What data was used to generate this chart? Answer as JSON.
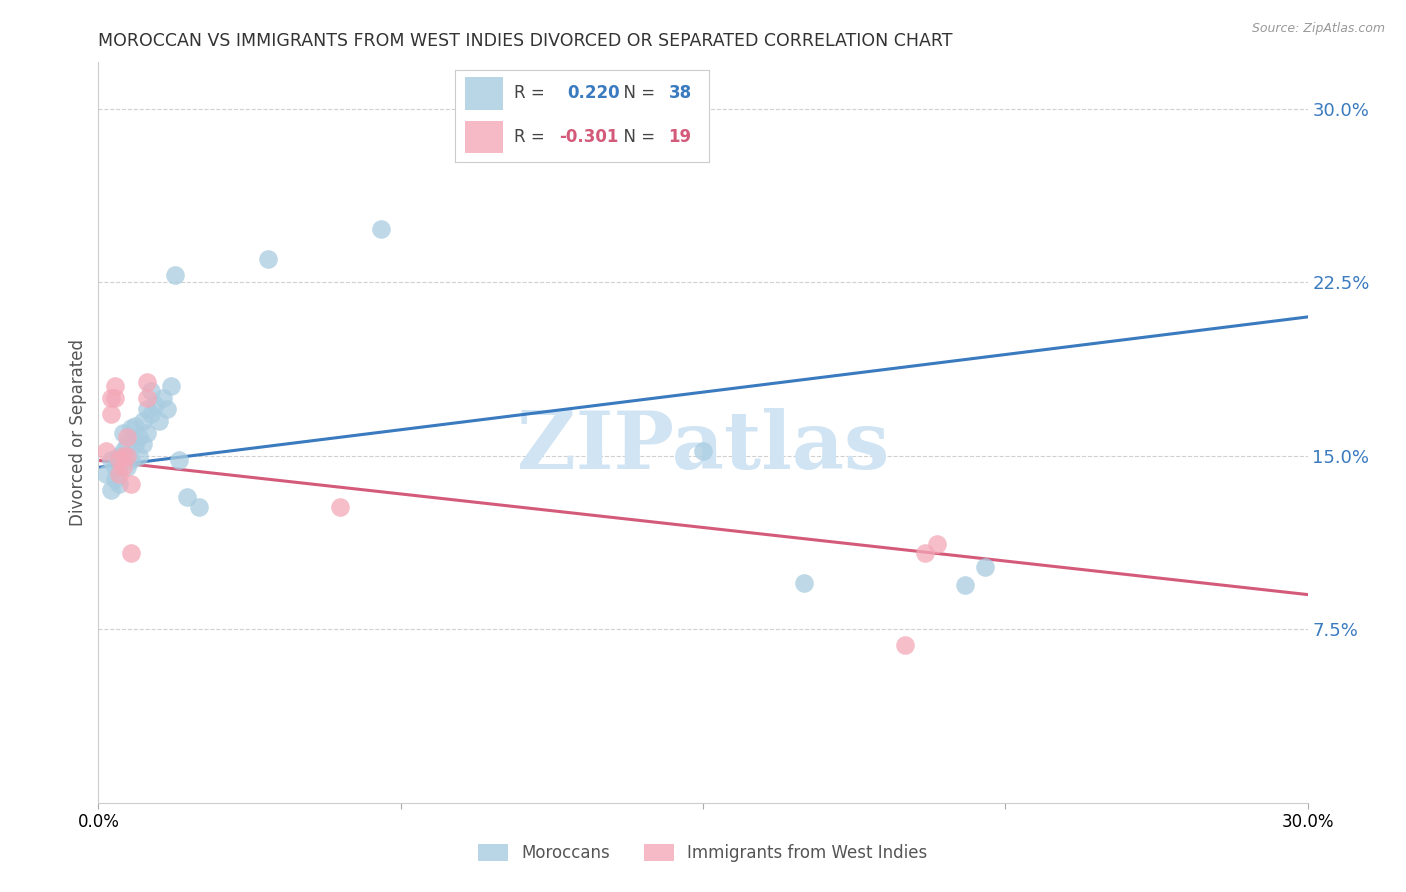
{
  "title": "MOROCCAN VS IMMIGRANTS FROM WEST INDIES DIVORCED OR SEPARATED CORRELATION CHART",
  "source": "Source: ZipAtlas.com",
  "ylabel": "Divorced or Separated",
  "legend_label_blue": "Moroccans",
  "legend_label_pink": "Immigrants from West Indies",
  "R_blue": "0.220",
  "N_blue": "38",
  "R_pink": "-0.301",
  "N_pink": "19",
  "xlim": [
    0.0,
    0.3
  ],
  "ylim": [
    0.0,
    0.32
  ],
  "yticks": [
    0.075,
    0.15,
    0.225,
    0.3
  ],
  "ytick_labels": [
    "7.5%",
    "15.0%",
    "22.5%",
    "30.0%"
  ],
  "blue_scatter_x": [
    0.002,
    0.003,
    0.003,
    0.004,
    0.004,
    0.005,
    0.005,
    0.006,
    0.006,
    0.007,
    0.007,
    0.008,
    0.008,
    0.009,
    0.009,
    0.01,
    0.01,
    0.011,
    0.011,
    0.012,
    0.012,
    0.013,
    0.013,
    0.014,
    0.015,
    0.016,
    0.017,
    0.018,
    0.019,
    0.02,
    0.022,
    0.025,
    0.042,
    0.07,
    0.15,
    0.175,
    0.215,
    0.22
  ],
  "blue_scatter_y": [
    0.142,
    0.148,
    0.135,
    0.145,
    0.14,
    0.15,
    0.138,
    0.16,
    0.152,
    0.155,
    0.145,
    0.162,
    0.148,
    0.155,
    0.163,
    0.158,
    0.15,
    0.165,
    0.155,
    0.16,
    0.17,
    0.168,
    0.178,
    0.172,
    0.165,
    0.175,
    0.17,
    0.18,
    0.228,
    0.148,
    0.132,
    0.128,
    0.235,
    0.248,
    0.152,
    0.095,
    0.094,
    0.102
  ],
  "pink_scatter_x": [
    0.002,
    0.003,
    0.003,
    0.004,
    0.004,
    0.005,
    0.005,
    0.006,
    0.006,
    0.007,
    0.007,
    0.008,
    0.008,
    0.012,
    0.012,
    0.06,
    0.2,
    0.205,
    0.208
  ],
  "pink_scatter_y": [
    0.152,
    0.175,
    0.168,
    0.18,
    0.175,
    0.148,
    0.142,
    0.15,
    0.145,
    0.15,
    0.158,
    0.138,
    0.108,
    0.182,
    0.175,
    0.128,
    0.068,
    0.108,
    0.112
  ],
  "blue_color": "#a8cce0",
  "pink_color": "#f4a8b8",
  "blue_line_color": "#3a7abf",
  "pink_line_color": "#d45a7a",
  "blue_text_color": "#3a7abf",
  "pink_text_color": "#d45a7a",
  "watermark": "ZIPatlas",
  "watermark_color": "#d0e4f4",
  "background_color": "#ffffff",
  "grid_color": "#d0d0d0"
}
